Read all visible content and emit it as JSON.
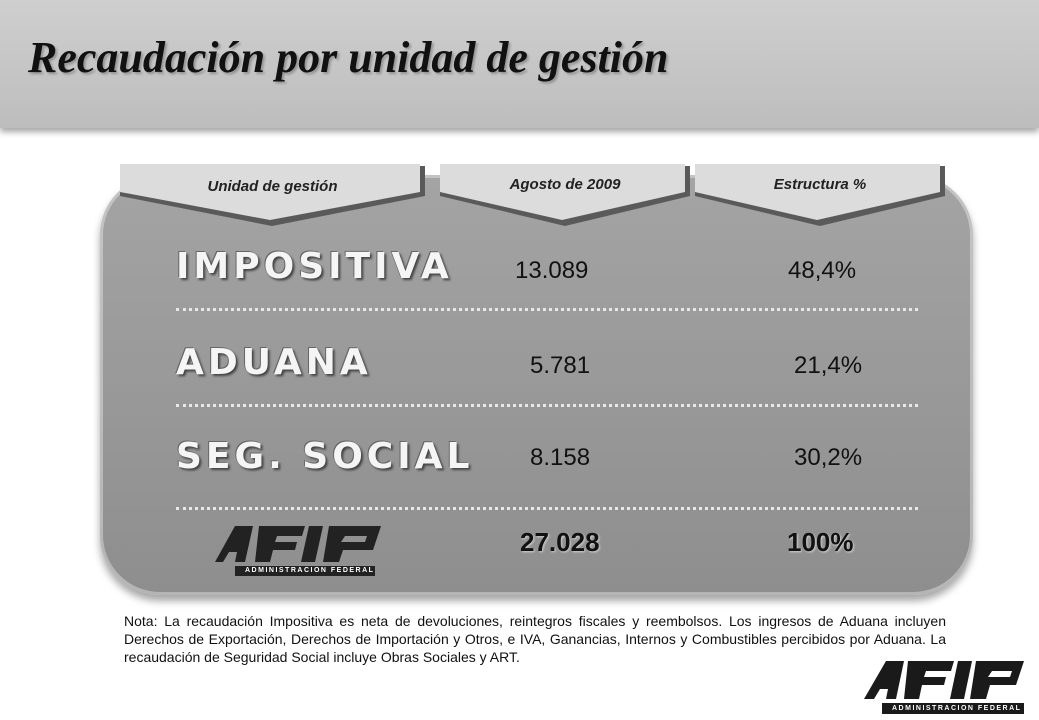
{
  "title": "Recaudación por unidad de gestión",
  "columns": [
    "Unidad de gestión",
    "Agosto de 2009",
    "Estructura %"
  ],
  "rows": [
    {
      "unit": "IMPOSITIVA",
      "amount": "13.089",
      "share": "48,4%"
    },
    {
      "unit": "ADUANA",
      "amount": "5.781",
      "share": "21,4%"
    },
    {
      "unit": "SEG. SOCIAL",
      "amount": "8.158",
      "share": "30,2%"
    }
  ],
  "total": {
    "amount": "27.028",
    "share": "100%"
  },
  "logo": {
    "mark": "AFIP",
    "subtitle": "ADMINISTRACION FEDERAL"
  },
  "note": "Nota: La recaudación Impositiva es neta de devoluciones, reintegros fiscales y reembolsos. Los ingresos de Aduana incluyen Derechos de Exportación, Derechos de Importación y Otros, e IVA, Ganancias, Internos y Combustibles percibidos por Aduana. La recaudación de Seguridad Social incluye Obras Sociales y ART."
}
